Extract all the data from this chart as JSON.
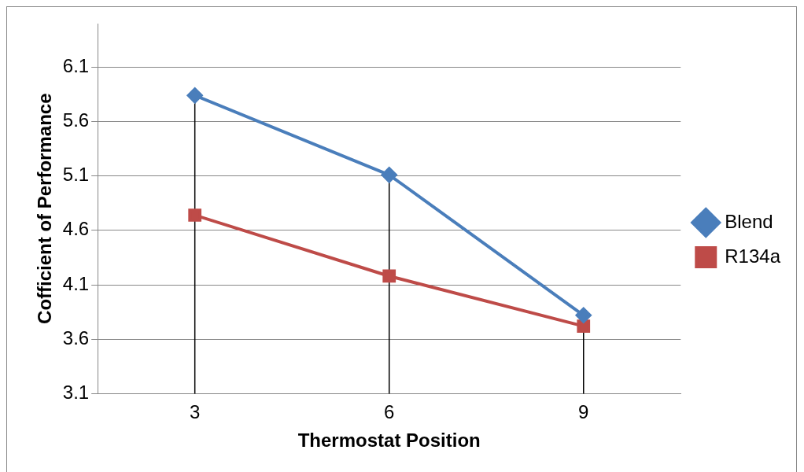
{
  "chart_data": {
    "type": "line",
    "xlabel": "Thermostat Position",
    "ylabel": "Cofficient of Performance",
    "categories": [
      "3",
      "6",
      "9"
    ],
    "series": [
      {
        "name": "Blend",
        "color": "#4a7ebb",
        "marker": "diamond",
        "values": [
          5.84,
          5.11,
          3.82
        ],
        "errors": [
          [
            3.1,
            5.84
          ],
          [
            3.1,
            5.11
          ],
          [
            3.1,
            3.82
          ]
        ]
      },
      {
        "name": "R134a",
        "color": "#be4b48",
        "marker": "square",
        "values": [
          4.74,
          4.18,
          3.72
        ]
      }
    ],
    "ylim": [
      3.1,
      6.5
    ],
    "yticks": [
      3.1,
      3.6,
      4.1,
      4.6,
      5.1,
      5.6,
      6.1
    ],
    "grid": "y",
    "legend": "right",
    "line_style": "solid"
  }
}
